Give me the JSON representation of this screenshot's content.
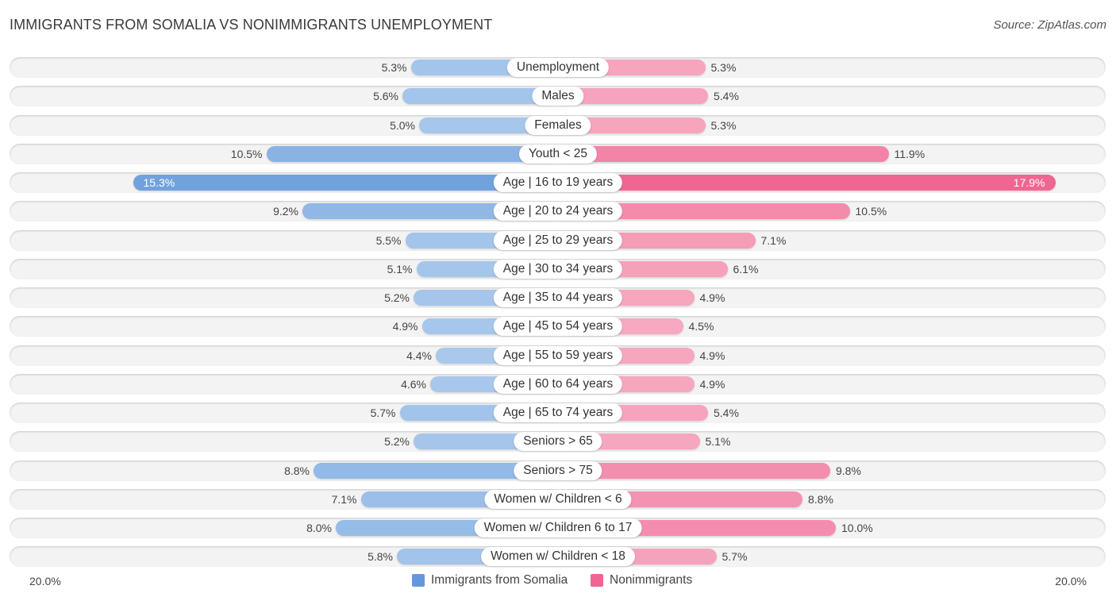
{
  "title": "IMMIGRANTS FROM SOMALIA VS NONIMMIGRANTS UNEMPLOYMENT",
  "source": "Source: ZipAtlas.com",
  "colors": {
    "left_light": "#a9c8ec",
    "left_strong": "#6399db",
    "right_light": "#f6a9c0",
    "right_strong": "#f06592"
  },
  "chart_data": {
    "type": "bar",
    "orientation": "horizontal-diverging",
    "title": "IMMIGRANTS FROM SOMALIA VS NONIMMIGRANTS UNEMPLOYMENT",
    "xlim": [
      -20,
      20
    ],
    "axis_labels": {
      "left": "20.0%",
      "right": "20.0%"
    },
    "legend_position": "bottom-center",
    "categories": [
      "Unemployment",
      "Males",
      "Females",
      "Youth < 25",
      "Age | 16 to 19 years",
      "Age | 20 to 24 years",
      "Age | 25 to 29 years",
      "Age | 30 to 34 years",
      "Age | 35 to 44 years",
      "Age | 45 to 54 years",
      "Age | 55 to 59 years",
      "Age | 60 to 64 years",
      "Age | 65 to 74 years",
      "Seniors > 65",
      "Seniors > 75",
      "Women w/ Children < 6",
      "Women w/ Children 6 to 17",
      "Women w/ Children < 18"
    ],
    "series": [
      {
        "name": "Immigrants from Somalia",
        "side": "left",
        "values": [
          5.3,
          5.6,
          5.0,
          10.5,
          15.3,
          9.2,
          5.5,
          5.1,
          5.2,
          4.9,
          4.4,
          4.6,
          5.7,
          5.2,
          8.8,
          7.1,
          8.0,
          5.8
        ],
        "labels": [
          "5.3%",
          "5.6%",
          "5.0%",
          "10.5%",
          "15.3%",
          "9.2%",
          "5.5%",
          "5.1%",
          "5.2%",
          "4.9%",
          "4.4%",
          "4.6%",
          "5.7%",
          "5.2%",
          "8.8%",
          "7.1%",
          "8.0%",
          "5.8%"
        ]
      },
      {
        "name": "Nonimmigrants",
        "side": "right",
        "values": [
          5.3,
          5.4,
          5.3,
          11.9,
          17.9,
          10.5,
          7.1,
          6.1,
          4.9,
          4.5,
          4.9,
          4.9,
          5.4,
          5.1,
          9.8,
          8.8,
          10.0,
          5.7
        ],
        "labels": [
          "5.3%",
          "5.4%",
          "5.3%",
          "11.9%",
          "17.9%",
          "10.5%",
          "7.1%",
          "6.1%",
          "4.9%",
          "4.5%",
          "4.9%",
          "4.9%",
          "5.4%",
          "5.1%",
          "9.8%",
          "8.8%",
          "10.0%",
          "5.7%"
        ]
      }
    ]
  },
  "legend": [
    {
      "label": "Immigrants from Somalia",
      "color": "#6399db"
    },
    {
      "label": "Nonimmigrants",
      "color": "#f06592"
    }
  ]
}
